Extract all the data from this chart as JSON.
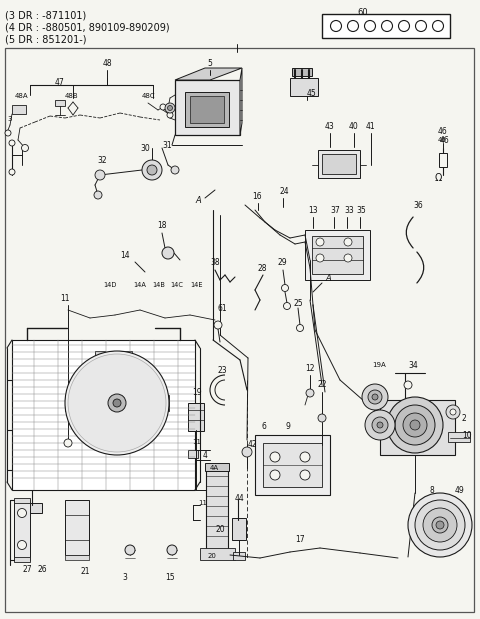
{
  "header_lines": [
    "(3 DR : -871101)",
    "(4 DR : -880501, 890109-890209)",
    "(5 DR : 851201-)"
  ],
  "connector_label": "60",
  "connector_circles": 7,
  "bg_color": "#f5f5f0",
  "line_color": "#1a1a1a",
  "text_color": "#111111"
}
